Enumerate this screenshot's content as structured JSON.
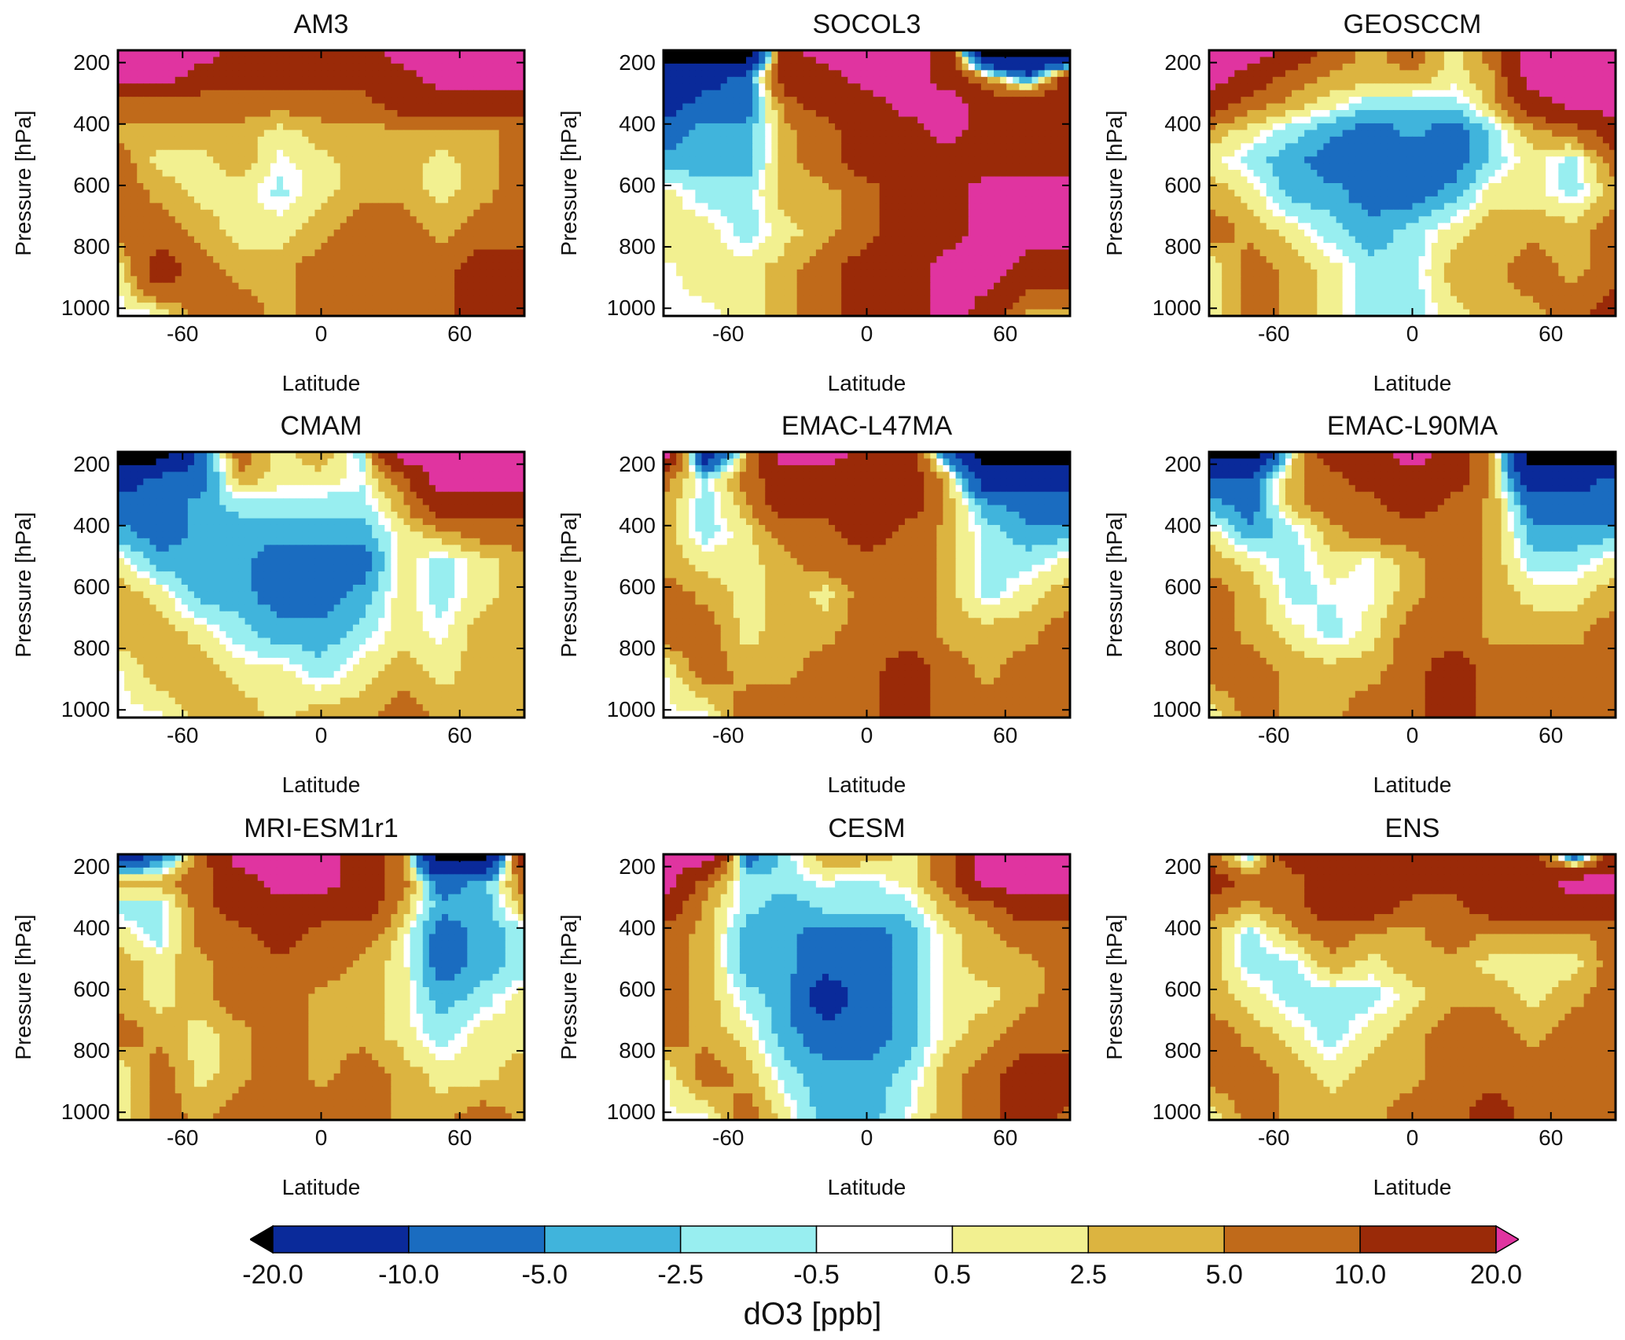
{
  "chart_data": {
    "type": "heatmap",
    "subtype": "filled-contour",
    "xlabel": "Latitude",
    "ylabel": "Pressure [hPa]",
    "xlim": [
      -88,
      88
    ],
    "ylim": [
      1025,
      160
    ],
    "xticks": [
      "-60",
      "0",
      "60"
    ],
    "xtick_values": [
      -60,
      0,
      60
    ],
    "yticks": [
      "200",
      "400",
      "600",
      "800",
      "1000"
    ],
    "ytick_values": [
      200,
      400,
      600,
      800,
      1000
    ],
    "grid_lat": [
      -88,
      -70,
      -52,
      -35,
      -18,
      0,
      18,
      35,
      52,
      70,
      88
    ],
    "grid_pressure": [
      170,
      250,
      330,
      420,
      520,
      620,
      750,
      880,
      1020
    ],
    "colorbar": {
      "title": "dO3 [ppb]",
      "levels": [
        "-20.0",
        "-10.0",
        "-5.0",
        "-2.5",
        "-0.5",
        "0.5",
        "2.5",
        "5.0",
        "10.0",
        "20.0"
      ],
      "level_values": [
        -20,
        -10,
        -5,
        -2.5,
        -0.5,
        0.5,
        2.5,
        5,
        10,
        20
      ],
      "colors": [
        "#000000",
        "#0a2a9a",
        "#1a6cc0",
        "#40b4dc",
        "#98eef0",
        "#ffffff",
        "#f2f090",
        "#dcb440",
        "#c06a1a",
        "#9a2a08",
        "#e034a0"
      ],
      "extend": "both"
    },
    "panels": [
      {
        "title": "AM3",
        "values": [
          [
            25,
            25,
            25,
            15,
            15,
            15,
            15,
            25,
            25,
            25,
            25
          ],
          [
            25,
            25,
            15,
            15,
            15,
            15,
            15,
            15,
            25,
            25,
            25
          ],
          [
            7,
            7,
            7,
            7,
            7,
            7,
            7,
            15,
            15,
            15,
            15
          ],
          [
            4,
            4,
            4,
            4,
            1.5,
            4,
            4,
            4,
            4,
            4,
            7
          ],
          [
            7,
            1.5,
            1.5,
            4,
            0,
            1.5,
            4,
            4,
            1.5,
            4,
            7
          ],
          [
            7,
            4,
            1.5,
            1.5,
            -1,
            1.5,
            4,
            4,
            1.5,
            4,
            7
          ],
          [
            7,
            7,
            4,
            1.5,
            1.5,
            4,
            7,
            7,
            4,
            7,
            7
          ],
          [
            0,
            15,
            7,
            4,
            4,
            7,
            7,
            7,
            7,
            15,
            15
          ],
          [
            0,
            0,
            7,
            7,
            4,
            7,
            7,
            7,
            7,
            15,
            15
          ]
        ]
      },
      {
        "title": "SOCOL3",
        "values": [
          [
            -25,
            -25,
            -25,
            15,
            25,
            25,
            25,
            15,
            -25,
            -25,
            -25
          ],
          [
            -15,
            -15,
            -7,
            15,
            15,
            25,
            25,
            15,
            4,
            -7,
            15
          ],
          [
            -15,
            -7,
            -7,
            7,
            15,
            15,
            25,
            25,
            15,
            15,
            15
          ],
          [
            -7,
            -4,
            -4,
            4,
            7,
            15,
            15,
            25,
            15,
            15,
            15
          ],
          [
            -4,
            -4,
            -4,
            4,
            7,
            15,
            15,
            15,
            15,
            15,
            15
          ],
          [
            1.5,
            -1.5,
            -1.5,
            4,
            4,
            7,
            15,
            15,
            25,
            25,
            25
          ],
          [
            1.5,
            1.5,
            -1.5,
            1.5,
            4,
            7,
            15,
            15,
            25,
            25,
            25
          ],
          [
            0,
            1.5,
            1.5,
            4,
            7,
            15,
            15,
            25,
            25,
            15,
            15
          ],
          [
            0,
            0,
            1.5,
            4,
            7,
            15,
            15,
            25,
            15,
            4,
            4
          ]
        ]
      },
      {
        "title": "GEOSCCM",
        "values": [
          [
            25,
            25,
            15,
            7,
            4,
            7,
            1.5,
            7,
            25,
            25,
            25
          ],
          [
            25,
            15,
            7,
            4,
            4,
            4,
            1.5,
            4,
            25,
            25,
            25
          ],
          [
            15,
            7,
            4,
            1.5,
            -1.5,
            -1.5,
            -1.5,
            4,
            15,
            25,
            25
          ],
          [
            4,
            1.5,
            -1.5,
            -4,
            -7,
            -4,
            -7,
            -1.5,
            4,
            7,
            15
          ],
          [
            1.5,
            -1.5,
            -4,
            -7,
            -7,
            -7,
            -7,
            -1.5,
            1.5,
            -1.5,
            7
          ],
          [
            4,
            1.5,
            -4,
            -4,
            -7,
            -7,
            -4,
            1.5,
            1.5,
            -1.5,
            4
          ],
          [
            7,
            4,
            1.5,
            -1.5,
            -4,
            -1.5,
            1.5,
            4,
            4,
            4,
            7
          ],
          [
            0,
            7,
            4,
            1.5,
            -1.5,
            -1.5,
            4,
            4,
            7,
            4,
            7
          ],
          [
            0,
            7,
            4,
            1.5,
            -1.5,
            -1.5,
            1.5,
            4,
            4,
            7,
            15
          ]
        ]
      },
      {
        "title": "CMAM",
        "values": [
          [
            -25,
            -25,
            -7,
            7,
            1.5,
            4,
            -1.5,
            25,
            25,
            25,
            25
          ],
          [
            -15,
            -7,
            -7,
            4,
            1.5,
            1.5,
            0,
            7,
            25,
            25,
            25
          ],
          [
            -7,
            -7,
            -4,
            -1.5,
            -1.5,
            -1.5,
            -1.5,
            4,
            15,
            15,
            15
          ],
          [
            -4,
            -7,
            -4,
            -4,
            -4,
            -4,
            -4,
            1.5,
            4,
            7,
            7
          ],
          [
            1.5,
            -4,
            -4,
            -4,
            -7,
            -7,
            -7,
            1.5,
            -1.5,
            1.5,
            4
          ],
          [
            4,
            1.5,
            -4,
            -4,
            -7,
            -7,
            -4,
            1.5,
            -1.5,
            1.5,
            4
          ],
          [
            4,
            4,
            1.5,
            -1.5,
            -4,
            -4,
            -1.5,
            1.5,
            0,
            4,
            4
          ],
          [
            0,
            4,
            4,
            1.5,
            1.5,
            -1.5,
            1.5,
            4,
            1.5,
            4,
            4
          ],
          [
            0,
            0,
            4,
            4,
            1.5,
            4,
            4,
            7,
            4,
            4,
            4
          ]
        ]
      },
      {
        "title": "EMAC-L47MA",
        "values": [
          [
            25,
            -15,
            4,
            25,
            25,
            15,
            15,
            -7,
            -25,
            -25,
            -25
          ],
          [
            7,
            -1.5,
            7,
            15,
            15,
            15,
            15,
            4,
            -15,
            -15,
            -15
          ],
          [
            4,
            -1.5,
            4,
            15,
            15,
            15,
            15,
            4,
            -4,
            -7,
            -7
          ],
          [
            4,
            -1.5,
            1.5,
            7,
            7,
            15,
            7,
            4,
            -1.5,
            -4,
            -4
          ],
          [
            4,
            1.5,
            1.5,
            4,
            7,
            7,
            7,
            4,
            -1.5,
            -1.5,
            1.5
          ],
          [
            7,
            4,
            1.5,
            4,
            1.5,
            7,
            7,
            4,
            -1.5,
            1.5,
            4
          ],
          [
            7,
            7,
            1.5,
            4,
            4,
            7,
            7,
            4,
            4,
            4,
            7
          ],
          [
            0,
            7,
            4,
            4,
            7,
            7,
            15,
            7,
            4,
            7,
            7
          ],
          [
            0,
            0,
            7,
            7,
            7,
            7,
            15,
            7,
            7,
            7,
            7
          ]
        ]
      },
      {
        "title": "EMAC-L90MA",
        "values": [
          [
            -25,
            -25,
            1.5,
            15,
            15,
            25,
            15,
            4,
            -25,
            -25,
            -25
          ],
          [
            -7,
            -7,
            4,
            7,
            15,
            15,
            15,
            4,
            -15,
            -15,
            -7
          ],
          [
            -4,
            -7,
            4,
            7,
            7,
            15,
            7,
            4,
            -7,
            -7,
            -7
          ],
          [
            1.5,
            -4,
            -1.5,
            4,
            7,
            7,
            7,
            4,
            -4,
            -4,
            -4
          ],
          [
            4,
            1.5,
            -1.5,
            1.5,
            0,
            4,
            7,
            4,
            -1.5,
            -1.5,
            1.5
          ],
          [
            7,
            4,
            -1.5,
            0,
            0,
            4,
            7,
            4,
            1.5,
            1.5,
            4
          ],
          [
            7,
            4,
            1.5,
            -1.5,
            1.5,
            7,
            7,
            4,
            4,
            4,
            7
          ],
          [
            7,
            7,
            4,
            4,
            4,
            7,
            15,
            7,
            7,
            7,
            7
          ],
          [
            0,
            7,
            4,
            4,
            7,
            7,
            15,
            7,
            7,
            7,
            7
          ]
        ]
      },
      {
        "title": "MRI-ESM1r1",
        "values": [
          [
            -15,
            -7,
            7,
            25,
            25,
            25,
            15,
            7,
            -25,
            -25,
            15
          ],
          [
            4,
            4,
            7,
            15,
            25,
            25,
            15,
            7,
            -7,
            -4,
            7
          ],
          [
            -1.5,
            -1.5,
            7,
            15,
            15,
            15,
            15,
            4,
            -4,
            -4,
            4
          ],
          [
            1.5,
            -1.5,
            7,
            7,
            15,
            7,
            7,
            1.5,
            -7,
            -4,
            -1.5
          ],
          [
            4,
            1.5,
            4,
            7,
            7,
            7,
            4,
            1.5,
            -7,
            -4,
            -1.5
          ],
          [
            4,
            1.5,
            4,
            7,
            7,
            4,
            4,
            1.5,
            -4,
            -1.5,
            1.5
          ],
          [
            7,
            4,
            1.5,
            4,
            7,
            4,
            4,
            1.5,
            -1.5,
            1.5,
            1.5
          ],
          [
            0,
            7,
            1.5,
            4,
            7,
            4,
            7,
            4,
            1.5,
            1.5,
            4
          ],
          [
            0,
            7,
            4,
            7,
            7,
            7,
            7,
            4,
            4,
            7,
            4
          ]
        ]
      },
      {
        "title": "CESM",
        "values": [
          [
            25,
            25,
            -7,
            -1.5,
            4,
            4,
            1.5,
            7,
            25,
            25,
            25
          ],
          [
            25,
            7,
            -1.5,
            -1.5,
            0,
            -1.5,
            1.5,
            7,
            25,
            25,
            25
          ],
          [
            15,
            4,
            -1.5,
            -4,
            -1.5,
            -1.5,
            -1.5,
            4,
            7,
            15,
            15
          ],
          [
            7,
            4,
            -4,
            -4,
            -7,
            -7,
            -4,
            1.5,
            4,
            7,
            7
          ],
          [
            7,
            4,
            -4,
            -4,
            -7,
            -7,
            -4,
            1.5,
            4,
            4,
            7
          ],
          [
            7,
            4,
            -1.5,
            -4,
            -15,
            -7,
            -4,
            1.5,
            1.5,
            4,
            7
          ],
          [
            7,
            4,
            1.5,
            -4,
            -7,
            -7,
            -4,
            1.5,
            4,
            7,
            7
          ],
          [
            0,
            7,
            4,
            -1.5,
            -4,
            -4,
            -1.5,
            4,
            7,
            15,
            15
          ],
          [
            0,
            0,
            7,
            1.5,
            -4,
            -4,
            0,
            4,
            7,
            15,
            7
          ]
        ]
      },
      {
        "title": "ENS",
        "values": [
          [
            7,
            -1.5,
            15,
            15,
            15,
            15,
            15,
            15,
            15,
            -7,
            15
          ],
          [
            15,
            7,
            7,
            15,
            15,
            15,
            15,
            15,
            15,
            25,
            25
          ],
          [
            7,
            4,
            7,
            15,
            15,
            7,
            7,
            15,
            15,
            15,
            15
          ],
          [
            4,
            -1.5,
            4,
            7,
            4,
            4,
            7,
            4,
            4,
            4,
            7
          ],
          [
            4,
            -1.5,
            -1.5,
            4,
            1.5,
            4,
            4,
            1.5,
            1.5,
            1.5,
            7
          ],
          [
            4,
            1.5,
            -1.5,
            -1.5,
            -1.5,
            1.5,
            4,
            4,
            1.5,
            4,
            7
          ],
          [
            7,
            4,
            1.5,
            -1.5,
            1.5,
            4,
            7,
            7,
            4,
            7,
            7
          ],
          [
            7,
            7,
            4,
            1.5,
            4,
            4,
            7,
            7,
            7,
            7,
            7
          ],
          [
            0,
            7,
            4,
            4,
            4,
            7,
            7,
            15,
            7,
            7,
            7
          ]
        ]
      }
    ]
  }
}
